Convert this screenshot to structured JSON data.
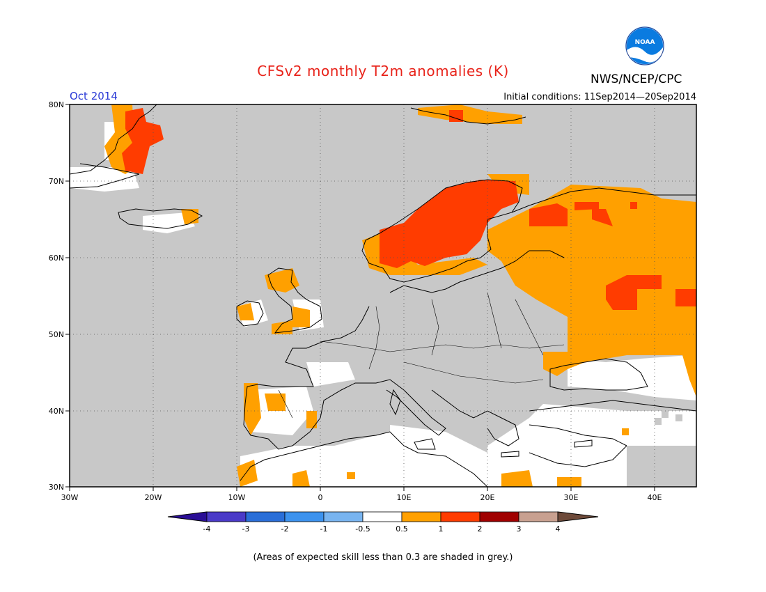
{
  "header": {
    "title": "CFSv2 monthly T2m anomalies (K)",
    "agency": "NWS/NCEP/CPC",
    "logo_text": "NOAA",
    "month": "Oct 2014",
    "initial_conditions": "Initial conditions: 11Sep2014—20Sep2014"
  },
  "map": {
    "lon_range": [
      -30,
      45
    ],
    "lat_range": [
      30,
      80
    ],
    "lon_ticks": [
      "30W",
      "20W",
      "10W",
      "0",
      "10E",
      "20E",
      "30E",
      "40E"
    ],
    "lat_ticks": [
      "80N",
      "70N",
      "60N",
      "50N",
      "40N",
      "30N"
    ],
    "grid": "dotted",
    "background_color": "#c8c8c8",
    "coastline_color": "#000000"
  },
  "colorbar": {
    "labels": [
      "-4",
      "-3",
      "-2",
      "-1",
      "-0.5",
      "0.5",
      "1",
      "2",
      "3",
      "4"
    ],
    "colors": [
      "#2a0e96",
      "#4a3ac8",
      "#2a6ed8",
      "#3c92ee",
      "#78b4f0",
      "#ffffff",
      "#ffa000",
      "#ff3c00",
      "#a00000",
      "#c8a090",
      "#6e4a3a"
    ]
  },
  "footnote": "(Areas of expected skill less than 0.3 are shaded in grey.)"
}
